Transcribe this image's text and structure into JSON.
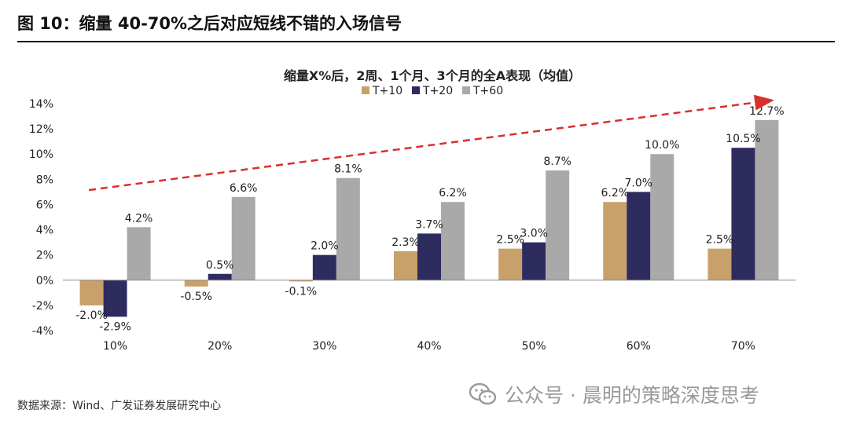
{
  "figure": {
    "title": "图 10：缩量 40-70%之后对应短线不错的入场信号",
    "source": "数据来源：Wind、广发证券发展研究中心"
  },
  "watermark": {
    "text": "公众号 · 晨明的策略深度思考",
    "icon": "wechat-icon"
  },
  "chart_data": {
    "type": "bar",
    "title": "缩量X%后，2周、1个月、3个月的全A表现（均值）",
    "categories": [
      "10%",
      "20%",
      "30%",
      "40%",
      "50%",
      "60%",
      "70%"
    ],
    "series": [
      {
        "name": "T+10",
        "color": "#c8a06a",
        "values": [
          -2.0,
          -0.5,
          -0.1,
          2.3,
          2.5,
          6.2,
          2.5
        ],
        "labels": [
          "-2.0%",
          "-0.5%",
          "-0.1%",
          "2.3%",
          "2.5%",
          "6.2%",
          "2.5%"
        ]
      },
      {
        "name": "T+20",
        "color": "#2e2b5f",
        "values": [
          -2.9,
          0.5,
          2.0,
          3.7,
          3.0,
          7.0,
          10.5
        ],
        "labels": [
          "-2.9%",
          "0.5%",
          "2.0%",
          "3.7%",
          "3.0%",
          "7.0%",
          "10.5%"
        ]
      },
      {
        "name": "T+60",
        "color": "#a9a9a9",
        "values": [
          4.2,
          6.6,
          8.1,
          6.2,
          8.7,
          10.0,
          12.7
        ],
        "labels": [
          "4.2%",
          "6.6%",
          "8.1%",
          "6.2%",
          "8.7%",
          "10.0%",
          "12.7%"
        ]
      }
    ],
    "ylim": [
      -4,
      14
    ],
    "yticks": [
      -4,
      -2,
      0,
      2,
      4,
      6,
      8,
      10,
      12,
      14
    ],
    "ytick_labels": [
      "-4%",
      "-2%",
      "0%",
      "2%",
      "4%",
      "6%",
      "8%",
      "10%",
      "12%",
      "14%"
    ],
    "legend_position": "top-center",
    "grid": false,
    "annotation": {
      "type": "dashed-arrow",
      "color": "#d9302c",
      "meaning": "upward-trend"
    }
  }
}
